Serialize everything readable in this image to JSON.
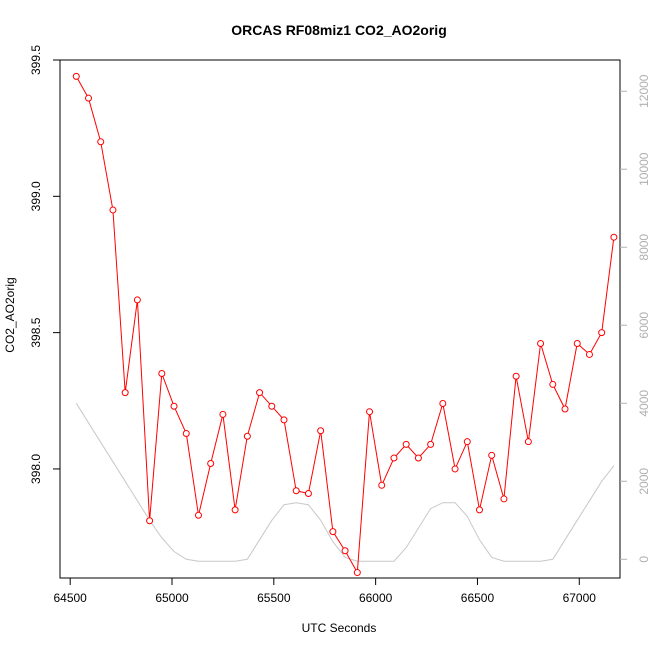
{
  "chart_data": {
    "type": "line",
    "title": "ORCAS RF08miz1 CO2_AO2orig",
    "xlabel": "UTC Seconds",
    "ylabel": "CO2_AO2orig",
    "xlim": [
      64450,
      67200
    ],
    "ylim": [
      397.6,
      399.5
    ],
    "y2lim": [
      0,
      12000
    ],
    "x_ticks": [
      "64500",
      "65000",
      "65500",
      "66000",
      "66500",
      "67000"
    ],
    "y_ticks": [
      "398.0",
      "398.5",
      "399.0",
      "399.5"
    ],
    "y2_ticks": [
      "0",
      "2000",
      "4000",
      "6000",
      "8000",
      "10000",
      "12000"
    ],
    "colors": {
      "primary": "#ff0000",
      "secondary": "#c8c8c8",
      "secondary_axis": "#b0b0b0"
    },
    "series": [
      {
        "axis": "left",
        "marker": "open-circle",
        "x": [
          64530,
          64590,
          64650,
          64710,
          64770,
          64830,
          64890,
          64950,
          65010,
          65070,
          65130,
          65190,
          65250,
          65310,
          65370,
          65430,
          65490,
          65550,
          65610,
          65670,
          65730,
          65790,
          65850,
          65910,
          65970,
          66030,
          66090,
          66150,
          66210,
          66270,
          66330,
          66390,
          66450,
          66510,
          66570,
          66630,
          66690,
          66750,
          66810,
          66870,
          66930,
          66990,
          67050,
          67110,
          67170
        ],
        "values": [
          399.44,
          399.36,
          399.2,
          398.95,
          398.28,
          398.62,
          397.81,
          398.35,
          398.23,
          398.13,
          397.83,
          398.02,
          398.2,
          397.85,
          398.12,
          398.28,
          398.23,
          398.18,
          397.92,
          397.91,
          398.14,
          397.77,
          397.7,
          397.62,
          398.21,
          397.94,
          398.04,
          398.09,
          398.04,
          398.09,
          398.24,
          398.0,
          398.1,
          397.85,
          398.05,
          397.89,
          398.34,
          398.1,
          398.46,
          398.31,
          398.22,
          398.46,
          398.42,
          398.5,
          398.85
        ]
      },
      {
        "axis": "right",
        "x": [
          64530,
          64650,
          64770,
          64890,
          64950,
          65010,
          65070,
          65130,
          65190,
          65250,
          65310,
          65370,
          65430,
          65490,
          65550,
          65610,
          65670,
          65730,
          65790,
          65850,
          65910,
          65970,
          66030,
          66090,
          66150,
          66210,
          66270,
          66330,
          66390,
          66450,
          66510,
          66570,
          66630,
          66690,
          66750,
          66810,
          66870,
          66930,
          66990,
          67050,
          67110,
          67170
        ],
        "values": [
          4000,
          3000,
          2000,
          1000,
          550,
          200,
          0,
          -50,
          -50,
          -50,
          -50,
          0,
          500,
          1000,
          1400,
          1450,
          1400,
          1000,
          450,
          50,
          -50,
          -50,
          -50,
          -50,
          300,
          800,
          1300,
          1450,
          1450,
          1100,
          500,
          50,
          -50,
          -50,
          -50,
          -50,
          0,
          500,
          1000,
          1500,
          2000,
          2400
        ]
      }
    ]
  }
}
